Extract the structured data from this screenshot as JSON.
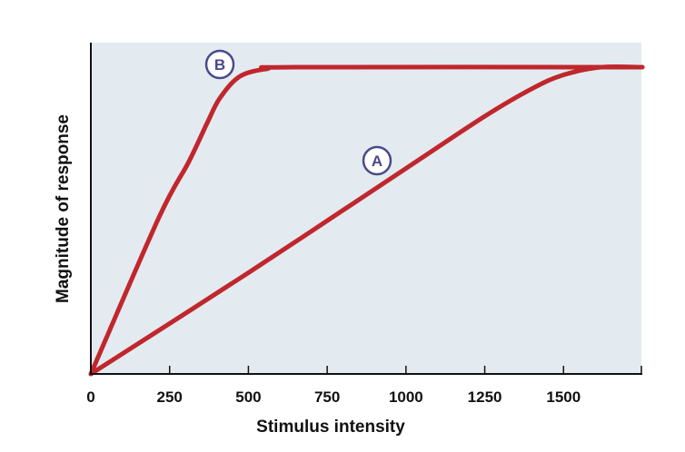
{
  "chart_data": {
    "type": "line",
    "title": "",
    "xlabel": "Stimulus intensity",
    "ylabel": "Magnitude of response",
    "xlim": [
      0,
      1750
    ],
    "ylim": [
      0,
      1.08
    ],
    "xticks": [
      0,
      250,
      500,
      750,
      1000,
      1250,
      1500
    ],
    "xtick_labels": [
      "0",
      "250",
      "500",
      "750",
      "1000",
      "1250",
      "1500"
    ],
    "grid": false,
    "series": [
      {
        "name": "A",
        "points": [
          [
            0,
            0
          ],
          [
            500,
            0.33
          ],
          [
            1000,
            0.67
          ],
          [
            1250,
            0.84
          ],
          [
            1400,
            0.93
          ],
          [
            1500,
            0.975
          ],
          [
            1620,
            1
          ],
          [
            1750,
            1
          ]
        ],
        "label_at": [
          908,
          0.7
        ]
      },
      {
        "name": "B",
        "points": [
          [
            0,
            0
          ],
          [
            216,
            0.51
          ],
          [
            310,
            0.69
          ],
          [
            370,
            0.82
          ],
          [
            410,
            0.9
          ],
          [
            473,
            0.97
          ],
          [
            560,
            0.995
          ],
          [
            650,
            1
          ],
          [
            1750,
            1
          ]
        ],
        "label_at": [
          410,
          1.0
        ]
      }
    ],
    "colors": {
      "line": "#c0272d",
      "background": "#e3ebf0",
      "annotation": "#4a4a8a"
    }
  }
}
